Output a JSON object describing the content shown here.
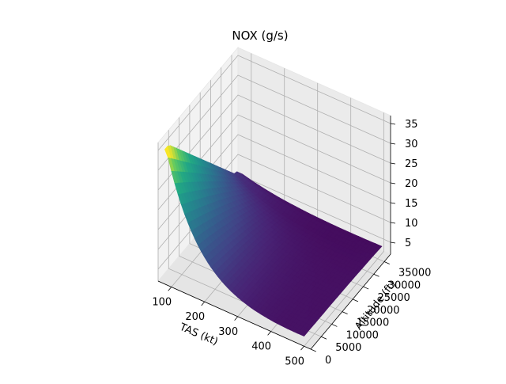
{
  "chart_data": {
    "type": "surface",
    "title": "NOX (g/s)",
    "xlabel": "TAS (kt)",
    "ylabel": "Altitude (ft)",
    "zlabel": "",
    "xticks": [
      "100",
      "200",
      "300",
      "400",
      "500"
    ],
    "yticks": [
      "0",
      "5000",
      "10000",
      "15000",
      "20000",
      "25000",
      "30000",
      "35000"
    ],
    "zticks": [
      "5",
      "10",
      "15",
      "20",
      "25",
      "30",
      "35"
    ],
    "xlim": [
      60,
      520
    ],
    "ylim": [
      0,
      38000
    ],
    "zlim": [
      2,
      37
    ],
    "colormap": "viridis",
    "grid": true,
    "surface": {
      "tas_range_kt": [
        80,
        500
      ],
      "altitude_range_ft": [
        0,
        37000
      ],
      "approx_nox_min_gs": 2.5,
      "approx_nox_max_gs": 35
    }
  }
}
